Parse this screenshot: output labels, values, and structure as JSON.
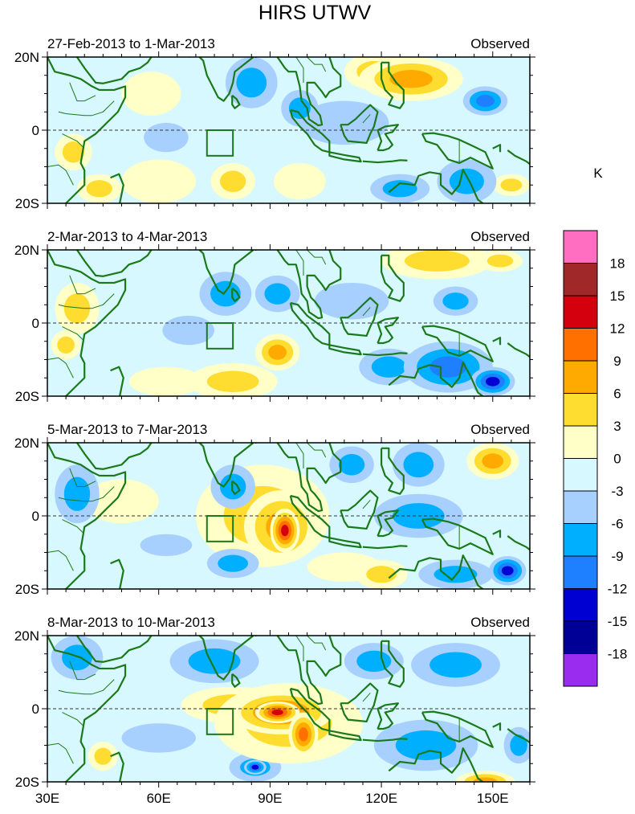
{
  "chart_data": {
    "type": "heatmap",
    "title": "HIRS UTWV",
    "units_label": "K",
    "x_ticks": [
      "30E",
      "60E",
      "90E",
      "120E",
      "150E"
    ],
    "x_tick_values": [
      30,
      60,
      90,
      120,
      150
    ],
    "y_ticks": [
      "20N",
      "0",
      "20S"
    ],
    "xlim": [
      30,
      160
    ],
    "ylim": [
      -20,
      20
    ],
    "equator_line": "dashed",
    "box_region": {
      "lon": [
        73,
        80
      ],
      "lat": [
        -7,
        0
      ]
    },
    "colorbar": {
      "labels": [
        "18",
        "15",
        "12",
        "9",
        "6",
        "3",
        "0",
        "-3",
        "-6",
        "-9",
        "-12",
        "-15",
        "-18"
      ],
      "colors": [
        "#ff6ec0",
        "#a02828",
        "#d4000e",
        "#ff7000",
        "#ffaa00",
        "#ffdc30",
        "#ffffc8",
        "#d8f8ff",
        "#a8d0ff",
        "#00b0ff",
        "#1e80ff",
        "#0000d2",
        "#000096",
        "#9a2cf0"
      ],
      "lower_levels": [
        19.5,
        16.5,
        13.5,
        10.5,
        7.5,
        4.5,
        1.5,
        -1.5,
        -4.5,
        -7.5,
        -10.5,
        -13.5,
        -16.5,
        -99
      ]
    },
    "panels": [
      {
        "period": "27-Feb-2013 to 1-Mar-2013",
        "label": "Observed",
        "features": [
          {
            "lon": 128,
            "lat": 14,
            "value": 10,
            "rx": 14,
            "ry": 6
          },
          {
            "lon": 118,
            "lat": 16,
            "value": 7,
            "rx": 8,
            "ry": 5
          },
          {
            "lon": 85,
            "lat": 13,
            "value": -7,
            "rx": 7,
            "ry": 7
          },
          {
            "lon": 148,
            "lat": 8,
            "value": -8,
            "rx": 6,
            "ry": 4
          },
          {
            "lon": 98,
            "lat": 6,
            "value": -5,
            "rx": 5,
            "ry": 5
          },
          {
            "lon": 37,
            "lat": -6,
            "value": 6,
            "rx": 5,
            "ry": 5
          },
          {
            "lon": 44,
            "lat": -16,
            "value": 6,
            "rx": 6,
            "ry": 4
          },
          {
            "lon": 60,
            "lat": -14,
            "value": 4,
            "rx": 10,
            "ry": 6
          },
          {
            "lon": 80,
            "lat": -14,
            "value": 7,
            "rx": 6,
            "ry": 5
          },
          {
            "lon": 110,
            "lat": 2,
            "value": -4,
            "rx": 12,
            "ry": 6
          },
          {
            "lon": 143,
            "lat": -14,
            "value": -6,
            "rx": 8,
            "ry": 6
          },
          {
            "lon": 125,
            "lat": -16,
            "value": -5,
            "rx": 8,
            "ry": 4
          },
          {
            "lon": 155,
            "lat": -15,
            "value": 5,
            "rx": 5,
            "ry": 3
          },
          {
            "lon": 62,
            "lat": -2,
            "value": -4,
            "rx": 6,
            "ry": 4
          },
          {
            "lon": 58,
            "lat": 10,
            "value": 4,
            "rx": 8,
            "ry": 6
          },
          {
            "lon": 98,
            "lat": -14,
            "value": 4,
            "rx": 7,
            "ry": 5
          }
        ]
      },
      {
        "period": "2-Mar-2013 to 4-Mar-2013",
        "label": "Observed",
        "features": [
          {
            "lon": 150,
            "lat": -16,
            "value": -11,
            "rx": 6,
            "ry": 4
          },
          {
            "lon": 138,
            "lat": -12,
            "value": -8,
            "rx": 12,
            "ry": 7
          },
          {
            "lon": 122,
            "lat": -12,
            "value": -6,
            "rx": 8,
            "ry": 5
          },
          {
            "lon": 92,
            "lat": 8,
            "value": -7,
            "rx": 6,
            "ry": 5
          },
          {
            "lon": 78,
            "lat": 8,
            "value": -5,
            "rx": 7,
            "ry": 6
          },
          {
            "lon": 38,
            "lat": 4,
            "value": 5,
            "rx": 6,
            "ry": 7
          },
          {
            "lon": 35,
            "lat": -6,
            "value": 6,
            "rx": 4,
            "ry": 4
          },
          {
            "lon": 92,
            "lat": -8,
            "value": 8,
            "rx": 6,
            "ry": 5
          },
          {
            "lon": 80,
            "lat": -16,
            "value": 6,
            "rx": 12,
            "ry": 5
          },
          {
            "lon": 62,
            "lat": -16,
            "value": 4,
            "rx": 10,
            "ry": 4
          },
          {
            "lon": 135,
            "lat": 17,
            "value": 6,
            "rx": 15,
            "ry": 5
          },
          {
            "lon": 152,
            "lat": 17,
            "value": 7,
            "rx": 6,
            "ry": 3
          },
          {
            "lon": 140,
            "lat": 6,
            "value": -6,
            "rx": 6,
            "ry": 4
          },
          {
            "lon": 112,
            "lat": 6,
            "value": -4,
            "rx": 10,
            "ry": 5
          },
          {
            "lon": 68,
            "lat": -2,
            "value": -4,
            "rx": 7,
            "ry": 4
          }
        ]
      },
      {
        "period": "5-Mar-2013 to 7-Mar-2013",
        "label": "Observed",
        "features": [
          {
            "lon": 94,
            "lat": -4,
            "value": 14,
            "rx": 4,
            "ry": 6
          },
          {
            "lon": 93,
            "lat": -3,
            "value": 10,
            "rx": 10,
            "ry": 10
          },
          {
            "lon": 88,
            "lat": 0,
            "value": 6,
            "rx": 18,
            "ry": 14
          },
          {
            "lon": 154,
            "lat": -15,
            "value": -11,
            "rx": 5,
            "ry": 4
          },
          {
            "lon": 150,
            "lat": 15,
            "value": 8,
            "rx": 7,
            "ry": 5
          },
          {
            "lon": 130,
            "lat": 14,
            "value": -7,
            "rx": 7,
            "ry": 6
          },
          {
            "lon": 112,
            "lat": 14,
            "value": -5,
            "rx": 6,
            "ry": 5
          },
          {
            "lon": 80,
            "lat": 8,
            "value": -7,
            "rx": 6,
            "ry": 6
          },
          {
            "lon": 38,
            "lat": 6,
            "value": -7,
            "rx": 6,
            "ry": 8
          },
          {
            "lon": 50,
            "lat": 4,
            "value": 4,
            "rx": 10,
            "ry": 6
          },
          {
            "lon": 80,
            "lat": -13,
            "value": -7,
            "rx": 7,
            "ry": 4
          },
          {
            "lon": 62,
            "lat": -8,
            "value": -4,
            "rx": 7,
            "ry": 3
          },
          {
            "lon": 120,
            "lat": -16,
            "value": 6,
            "rx": 7,
            "ry": 4
          },
          {
            "lon": 140,
            "lat": -16,
            "value": -6,
            "rx": 10,
            "ry": 4
          },
          {
            "lon": 130,
            "lat": 0,
            "value": -5,
            "rx": 12,
            "ry": 6
          },
          {
            "lon": 110,
            "lat": -14,
            "value": 4,
            "rx": 10,
            "ry": 4
          }
        ]
      },
      {
        "period": "8-Mar-2013 to 10-Mar-2013",
        "label": "Observed",
        "features": [
          {
            "lon": 92,
            "lat": -1,
            "value": 16,
            "rx": 6,
            "ry": 3
          },
          {
            "lon": 93,
            "lat": -1,
            "value": 12,
            "rx": 14,
            "ry": 6
          },
          {
            "lon": 99,
            "lat": -7,
            "value": 12,
            "rx": 4,
            "ry": 6
          },
          {
            "lon": 95,
            "lat": -4,
            "value": 7,
            "rx": 20,
            "ry": 11
          },
          {
            "lon": 80,
            "lat": 1,
            "value": 5,
            "rx": 14,
            "ry": 5
          },
          {
            "lon": 86,
            "lat": -16,
            "value": -11,
            "rx": 3,
            "ry": 2
          },
          {
            "lon": 86,
            "lat": -16,
            "value": -6,
            "rx": 7,
            "ry": 4
          },
          {
            "lon": 38,
            "lat": 14,
            "value": -7,
            "rx": 7,
            "ry": 6
          },
          {
            "lon": 75,
            "lat": 13,
            "value": -7,
            "rx": 12,
            "ry": 6
          },
          {
            "lon": 118,
            "lat": 13,
            "value": -6,
            "rx": 8,
            "ry": 5
          },
          {
            "lon": 140,
            "lat": 12,
            "value": -6,
            "rx": 12,
            "ry": 6
          },
          {
            "lon": 148,
            "lat": -20,
            "value": 8,
            "rx": 8,
            "ry": 3
          },
          {
            "lon": 45,
            "lat": -13,
            "value": 6,
            "rx": 4,
            "ry": 4
          },
          {
            "lon": 132,
            "lat": -10,
            "value": -5,
            "rx": 14,
            "ry": 7
          },
          {
            "lon": 157,
            "lat": -10,
            "value": -7,
            "rx": 4,
            "ry": 5
          },
          {
            "lon": 60,
            "lat": -8,
            "value": -4,
            "rx": 10,
            "ry": 4
          }
        ]
      }
    ]
  }
}
